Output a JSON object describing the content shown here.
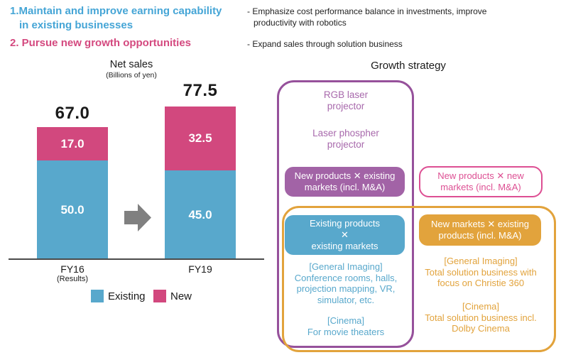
{
  "colors": {
    "heading_blue": "#45A5D6",
    "heading_pink": "#D4497F",
    "chart_blue": "#58A8CC",
    "chart_pink": "#D2487E",
    "purple_border": "#96519B",
    "purple_fill": "#A263A6",
    "pink_outline": "#DD4F93",
    "orange": "#E2A33C",
    "arrow_gray": "#808080"
  },
  "header": {
    "point1": [
      "1.Maintain and improve earning capability",
      "in existing businesses"
    ],
    "point2": "2. Pursue new growth opportunities",
    "bullets": [
      [
        "- Emphasize cost performance balance in investments, improve",
        "productivity with robotics"
      ],
      [
        "- Expand sales through solution business"
      ]
    ]
  },
  "chart_data": {
    "type": "bar",
    "stacked": true,
    "title": "Net sales",
    "subtitle": "(Billions of yen)",
    "categories": [
      "FY16",
      "FY19"
    ],
    "category_notes": [
      "(Results)",
      ""
    ],
    "series": [
      {
        "name": "Existing",
        "color": "#58A8CC",
        "values": [
          50.0,
          45.0
        ]
      },
      {
        "name": "New",
        "color": "#D2487E",
        "values": [
          17.0,
          32.5
        ]
      }
    ],
    "totals": [
      67.0,
      77.5
    ],
    "ylim": [
      0,
      80
    ],
    "grid": false,
    "legend_position": "bottom"
  },
  "diagram": {
    "title": "Growth strategy",
    "purple_zone": {
      "item1": [
        "RGB laser",
        "projector"
      ],
      "item2": [
        "Laser phospher",
        "projector"
      ],
      "label": [
        "New products ✕ existing",
        "markets (incl. M&A)"
      ]
    },
    "pink_zone": {
      "label": [
        "New products ✕ new",
        "markets (incl. M&A)"
      ]
    },
    "blue_zone": {
      "label": [
        "Existing products",
        "✕",
        "existing markets"
      ],
      "general_imaging": [
        "[General Imaging]",
        "Conference rooms, halls,",
        "projection mapping, VR,",
        "simulator, etc."
      ],
      "cinema": [
        "[Cinema]",
        "For movie theaters"
      ]
    },
    "orange_zone": {
      "label": [
        "New markets ✕ existing",
        "products (incl. M&A)"
      ],
      "general_imaging": [
        "[General Imaging]",
        "Total solution business with",
        "focus on Christie 360"
      ],
      "cinema": [
        "[Cinema]",
        "Total solution business incl.",
        "Dolby Cinema"
      ]
    }
  }
}
